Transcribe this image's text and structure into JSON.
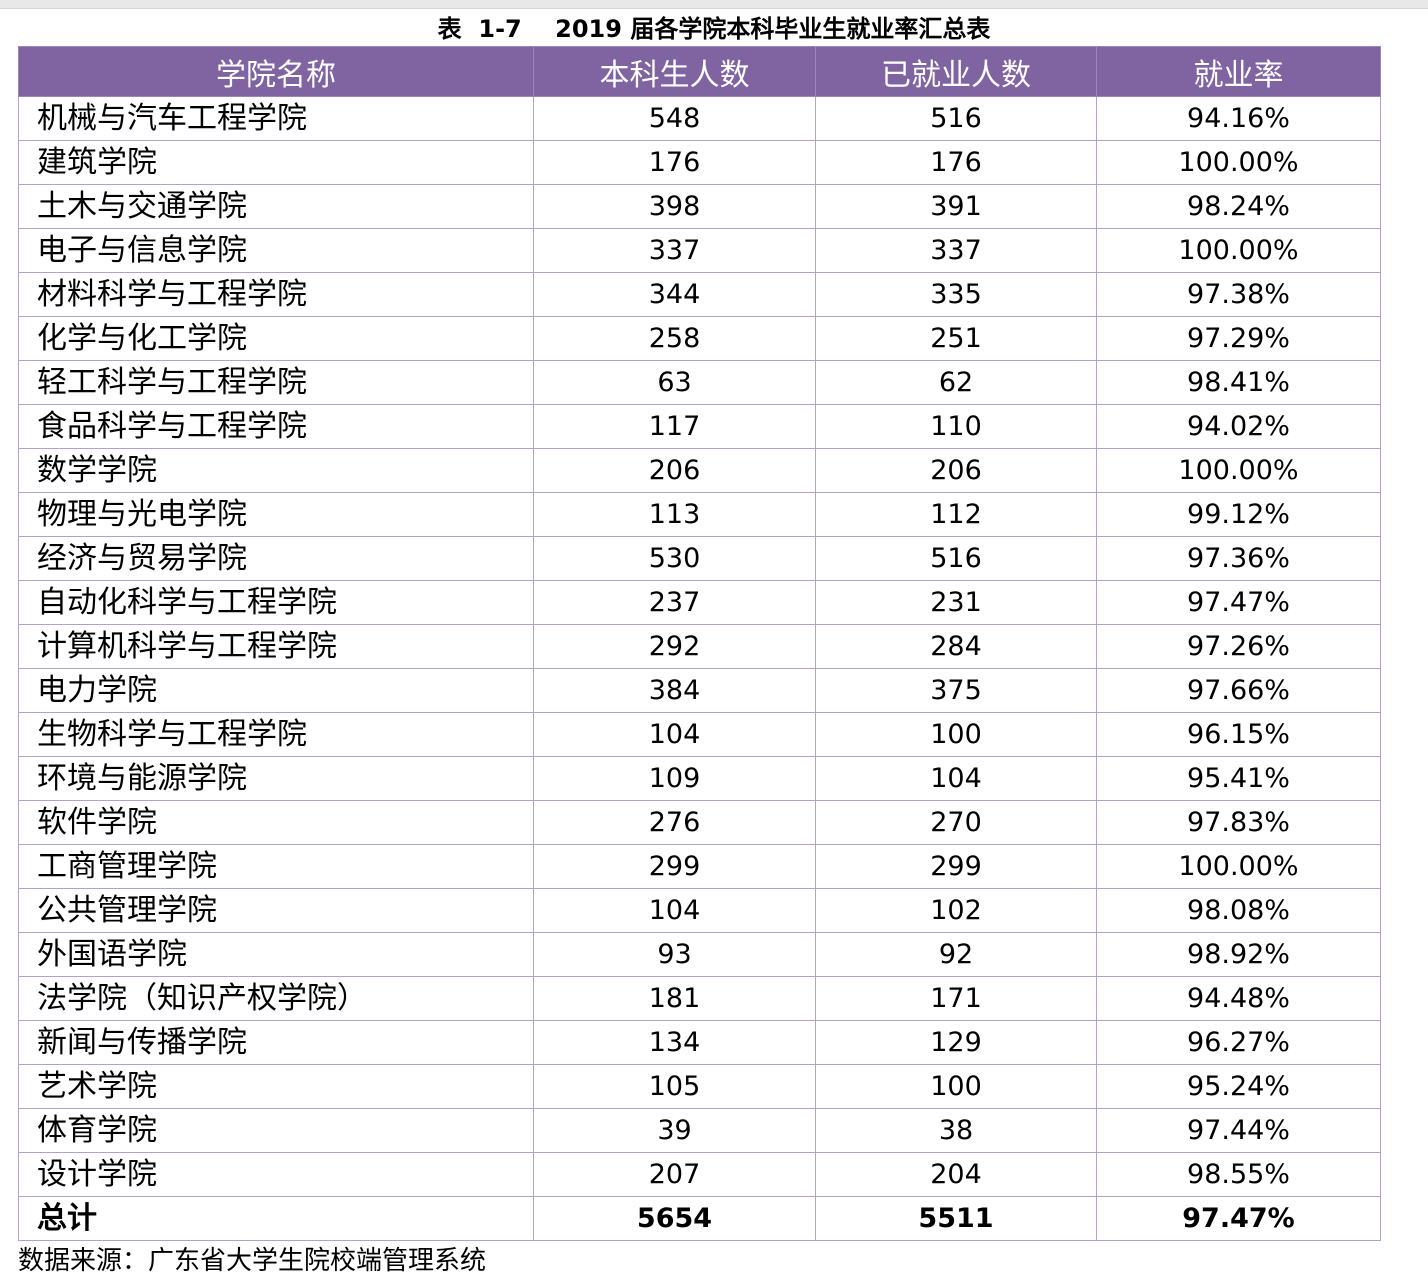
{
  "title": "表  1-7    2019 届各学院本科毕业生就业率汇总表",
  "headers": [
    "学院名称",
    "本科生人数",
    "已就业人数",
    "就业率"
  ],
  "rows": [
    [
      "机械与汽车工程学院",
      "548",
      "516",
      "94.16%"
    ],
    [
      "建筑学院",
      "176",
      "176",
      "100.00%"
    ],
    [
      "土木与交通学院",
      "398",
      "391",
      "98.24%"
    ],
    [
      "电子与信息学院",
      "337",
      "337",
      "100.00%"
    ],
    [
      "材料科学与工程学院",
      "344",
      "335",
      "97.38%"
    ],
    [
      "化学与化工学院",
      "258",
      "251",
      "97.29%"
    ],
    [
      "轻工科学与工程学院",
      "63",
      "62",
      "98.41%"
    ],
    [
      "食品科学与工程学院",
      "117",
      "110",
      "94.02%"
    ],
    [
      "数学学院",
      "206",
      "206",
      "100.00%"
    ],
    [
      "物理与光电学院",
      "113",
      "112",
      "99.12%"
    ],
    [
      "经济与贸易学院",
      "530",
      "516",
      "97.36%"
    ],
    [
      "自动化科学与工程学院",
      "237",
      "231",
      "97.47%"
    ],
    [
      "计算机科学与工程学院",
      "292",
      "284",
      "97.26%"
    ],
    [
      "电力学院",
      "384",
      "375",
      "97.66%"
    ],
    [
      "生物科学与工程学院",
      "104",
      "100",
      "96.15%"
    ],
    [
      "环境与能源学院",
      "109",
      "104",
      "95.41%"
    ],
    [
      "软件学院",
      "276",
      "270",
      "97.83%"
    ],
    [
      "工商管理学院",
      "299",
      "299",
      "100.00%"
    ],
    [
      "公共管理学院",
      "104",
      "102",
      "98.08%"
    ],
    [
      "外国语学院",
      "93",
      "92",
      "98.92%"
    ],
    [
      "法学院（知识产权学院）",
      "181",
      "171",
      "94.48%"
    ],
    [
      "新闻与传播学院",
      "134",
      "129",
      "96.27%"
    ],
    [
      "艺术学院",
      "105",
      "100",
      "95.24%"
    ],
    [
      "体育学院",
      "39",
      "38",
      "97.44%"
    ],
    [
      "设计学院",
      "207",
      "204",
      "98.55%"
    ]
  ],
  "total": [
    "总计",
    "5654",
    "5511",
    "97.47%"
  ],
  "source": "数据来源：广东省大学生院校端管理系统",
  "colors": {
    "header_bg": "#8064a2",
    "header_text": "#ffffff",
    "border": "#b3a2c7"
  }
}
